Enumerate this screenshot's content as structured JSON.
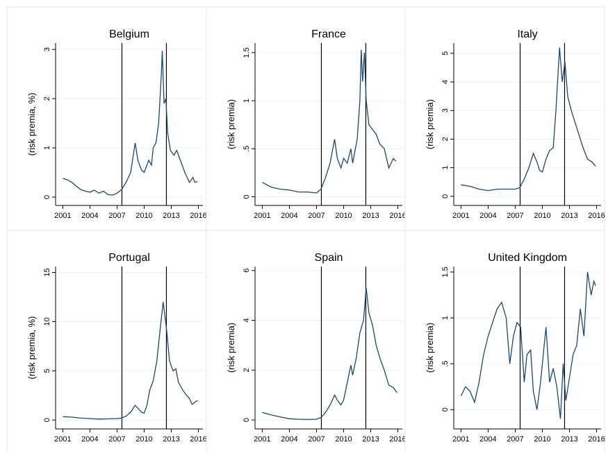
{
  "chart_data": [
    {
      "type": "line",
      "title": "Belgium",
      "ylabel": "(risk premia, %)",
      "color": "#1a476f",
      "x": [
        2001,
        2001.5,
        2002,
        2002.5,
        2003,
        2003.5,
        2004,
        2004.5,
        2005,
        2005.5,
        2006,
        2006.5,
        2007,
        2007.5,
        2008,
        2008.5,
        2009,
        2009.3,
        2009.7,
        2010,
        2010.5,
        2010.8,
        2011,
        2011.3,
        2011.6,
        2011.9,
        2012,
        2012.2,
        2012.4,
        2012.6,
        2012.9,
        2013.3,
        2013.6,
        2014,
        2014.5,
        2015,
        2015.4,
        2015.6,
        2015.9
      ],
      "values": [
        0.38,
        0.35,
        0.3,
        0.22,
        0.15,
        0.12,
        0.1,
        0.14,
        0.08,
        0.12,
        0.05,
        0.04,
        0.08,
        0.15,
        0.3,
        0.5,
        1.1,
        0.75,
        0.55,
        0.5,
        0.75,
        0.65,
        1.0,
        1.1,
        1.5,
        2.5,
        2.97,
        1.9,
        2.0,
        1.3,
        0.95,
        0.85,
        0.95,
        0.75,
        0.5,
        0.3,
        0.4,
        0.3,
        0.32
      ],
      "xlim": [
        2000.2,
        2016.5
      ],
      "xticks": [
        2001,
        2004,
        2007,
        2010,
        2013,
        2016
      ],
      "ylim": [
        -0.17,
        3.13
      ],
      "yticks": [
        0,
        1,
        2,
        3
      ],
      "vlines": [
        2007.54,
        2012.46
      ],
      "grid": true
    },
    {
      "type": "line",
      "title": "France",
      "ylabel": "(risk premia)",
      "color": "#1a476f",
      "x": [
        2001,
        2002,
        2003,
        2004,
        2005,
        2006,
        2007,
        2007.5,
        2008,
        2008.5,
        2009,
        2009.3,
        2009.7,
        2010,
        2010.4,
        2010.8,
        2011,
        2011.5,
        2011.8,
        2011.95,
        2012.1,
        2012.3,
        2012.5,
        2012.8,
        2013.2,
        2013.6,
        2014,
        2014.5,
        2015,
        2015.5,
        2015.8
      ],
      "values": [
        0.15,
        0.1,
        0.08,
        0.07,
        0.05,
        0.05,
        0.04,
        0.08,
        0.2,
        0.35,
        0.6,
        0.4,
        0.3,
        0.4,
        0.35,
        0.5,
        0.35,
        0.6,
        1.0,
        1.53,
        1.2,
        1.5,
        1.0,
        0.75,
        0.7,
        0.65,
        0.55,
        0.5,
        0.3,
        0.4,
        0.37
      ],
      "xlim": [
        2000.2,
        2016.5
      ],
      "xticks": [
        2001,
        2004,
        2007,
        2010,
        2013,
        2016
      ],
      "ylim": [
        -0.09,
        1.6
      ],
      "yticks": [
        0,
        {
          "value": 0.5,
          "label": ".5"
        },
        1,
        1.5
      ],
      "vlines": [
        2007.54,
        2012.46
      ],
      "grid": true
    },
    {
      "type": "line",
      "title": "Italy",
      "ylabel": "(risk premia)",
      "color": "#1a476f",
      "x": [
        2001,
        2002,
        2003,
        2004,
        2005,
        2006,
        2007,
        2007.5,
        2008,
        2008.5,
        2009,
        2009.4,
        2009.7,
        2010,
        2010.4,
        2010.8,
        2011.2,
        2011.5,
        2011.9,
        2012.2,
        2012.5,
        2012.8,
        2013.2,
        2013.6,
        2014,
        2014.5,
        2015,
        2015.5,
        2015.9
      ],
      "values": [
        0.4,
        0.35,
        0.25,
        0.2,
        0.25,
        0.25,
        0.25,
        0.3,
        0.6,
        1.0,
        1.5,
        1.2,
        0.9,
        0.85,
        1.3,
        1.6,
        1.7,
        3.0,
        5.2,
        4.0,
        4.7,
        3.5,
        3.0,
        2.6,
        2.2,
        1.7,
        1.3,
        1.2,
        1.05
      ],
      "xlim": [
        2000.2,
        2016.5
      ],
      "xticks": [
        2001,
        2004,
        2007,
        2010,
        2013,
        2016
      ],
      "ylim": [
        -0.32,
        5.36
      ],
      "yticks": [
        0,
        1,
        2,
        3,
        4,
        5
      ],
      "vlines": [
        2007.54,
        2012.46
      ],
      "grid": true
    },
    {
      "type": "line",
      "title": "Portugal",
      "ylabel": "(risk premia, %)",
      "color": "#1a476f",
      "x": [
        2001,
        2002,
        2003,
        2004,
        2005,
        2006,
        2007,
        2007.5,
        2008,
        2008.5,
        2009,
        2009.3,
        2009.7,
        2010,
        2010.3,
        2010.6,
        2011,
        2011.4,
        2011.8,
        2012.1,
        2012.3,
        2012.5,
        2012.8,
        2013.2,
        2013.5,
        2013.8,
        2014.3,
        2014.7,
        2015,
        2015.3,
        2015.9
      ],
      "values": [
        0.35,
        0.3,
        0.2,
        0.15,
        0.1,
        0.12,
        0.15,
        0.2,
        0.4,
        0.8,
        1.5,
        1.2,
        0.8,
        0.7,
        1.5,
        3.0,
        4.0,
        6.0,
        9.5,
        12.0,
        10.5,
        9.0,
        6.0,
        5.0,
        5.2,
        3.8,
        3.0,
        2.5,
        2.2,
        1.6,
        2.0
      ],
      "xlim": [
        2000.2,
        2016.5
      ],
      "xticks": [
        2001,
        2004,
        2007,
        2010,
        2013,
        2016
      ],
      "ylim": [
        -0.9,
        15.6
      ],
      "yticks": [
        0,
        5,
        10,
        15
      ],
      "vlines": [
        2007.54,
        2012.46
      ],
      "grid": true
    },
    {
      "type": "line",
      "title": "Spain",
      "ylabel": "(risk premia)",
      "color": "#1a476f",
      "x": [
        2001,
        2002,
        2003,
        2004,
        2005,
        2006,
        2007,
        2007.5,
        2008,
        2008.5,
        2009,
        2009.3,
        2009.7,
        2010,
        2010.4,
        2010.8,
        2011,
        2011.4,
        2011.8,
        2012.2,
        2012.5,
        2012.8,
        2013.2,
        2013.6,
        2014,
        2014.5,
        2015,
        2015.5,
        2015.9
      ],
      "values": [
        0.3,
        0.2,
        0.12,
        0.05,
        0.03,
        0.02,
        0.03,
        0.1,
        0.3,
        0.6,
        1.0,
        0.8,
        0.6,
        0.8,
        1.5,
        2.2,
        1.8,
        2.5,
        3.5,
        4.0,
        5.3,
        4.3,
        3.8,
        3.0,
        2.5,
        2.0,
        1.4,
        1.3,
        1.1
      ],
      "xlim": [
        2000.2,
        2016.5
      ],
      "xticks": [
        2001,
        2004,
        2007,
        2010,
        2013,
        2016
      ],
      "ylim": [
        -0.36,
        6.16
      ],
      "yticks": [
        0,
        2,
        4,
        6
      ],
      "vlines": [
        2007.54,
        2012.46
      ],
      "grid": true
    },
    {
      "type": "line",
      "title": "United Kingdom",
      "ylabel": "(risk premia)",
      "color": "#1a476f",
      "x": [
        2001,
        2001.5,
        2002,
        2002.5,
        2003,
        2003.5,
        2004,
        2004.5,
        2005,
        2005.5,
        2006,
        2006.4,
        2006.8,
        2007.2,
        2007.6,
        2008,
        2008.3,
        2008.7,
        2009,
        2009.4,
        2009.8,
        2010.1,
        2010.4,
        2010.8,
        2011.2,
        2011.6,
        2012,
        2012.3,
        2012.6,
        2013,
        2013.4,
        2013.8,
        2014.2,
        2014.6,
        2015,
        2015.4,
        2015.7,
        2015.9
      ],
      "values": [
        0.15,
        0.25,
        0.2,
        0.08,
        0.3,
        0.6,
        0.8,
        0.95,
        1.1,
        1.17,
        1.0,
        0.5,
        0.8,
        0.95,
        0.9,
        0.3,
        0.6,
        0.65,
        0.2,
        0.0,
        0.3,
        0.6,
        0.9,
        0.3,
        0.45,
        0.25,
        -0.1,
        0.5,
        0.1,
        0.35,
        0.6,
        0.7,
        1.1,
        0.8,
        1.5,
        1.25,
        1.4,
        1.35
      ],
      "xlim": [
        2000.2,
        2016.5
      ],
      "xticks": [
        2001,
        2004,
        2007,
        2010,
        2013,
        2016
      ],
      "ylim": [
        -0.21,
        1.56
      ],
      "yticks": [
        0,
        {
          "value": 0.5,
          "label": ".5"
        },
        1,
        1.5
      ],
      "vlines": [
        2007.54,
        2012.46
      ],
      "grid": true
    }
  ]
}
